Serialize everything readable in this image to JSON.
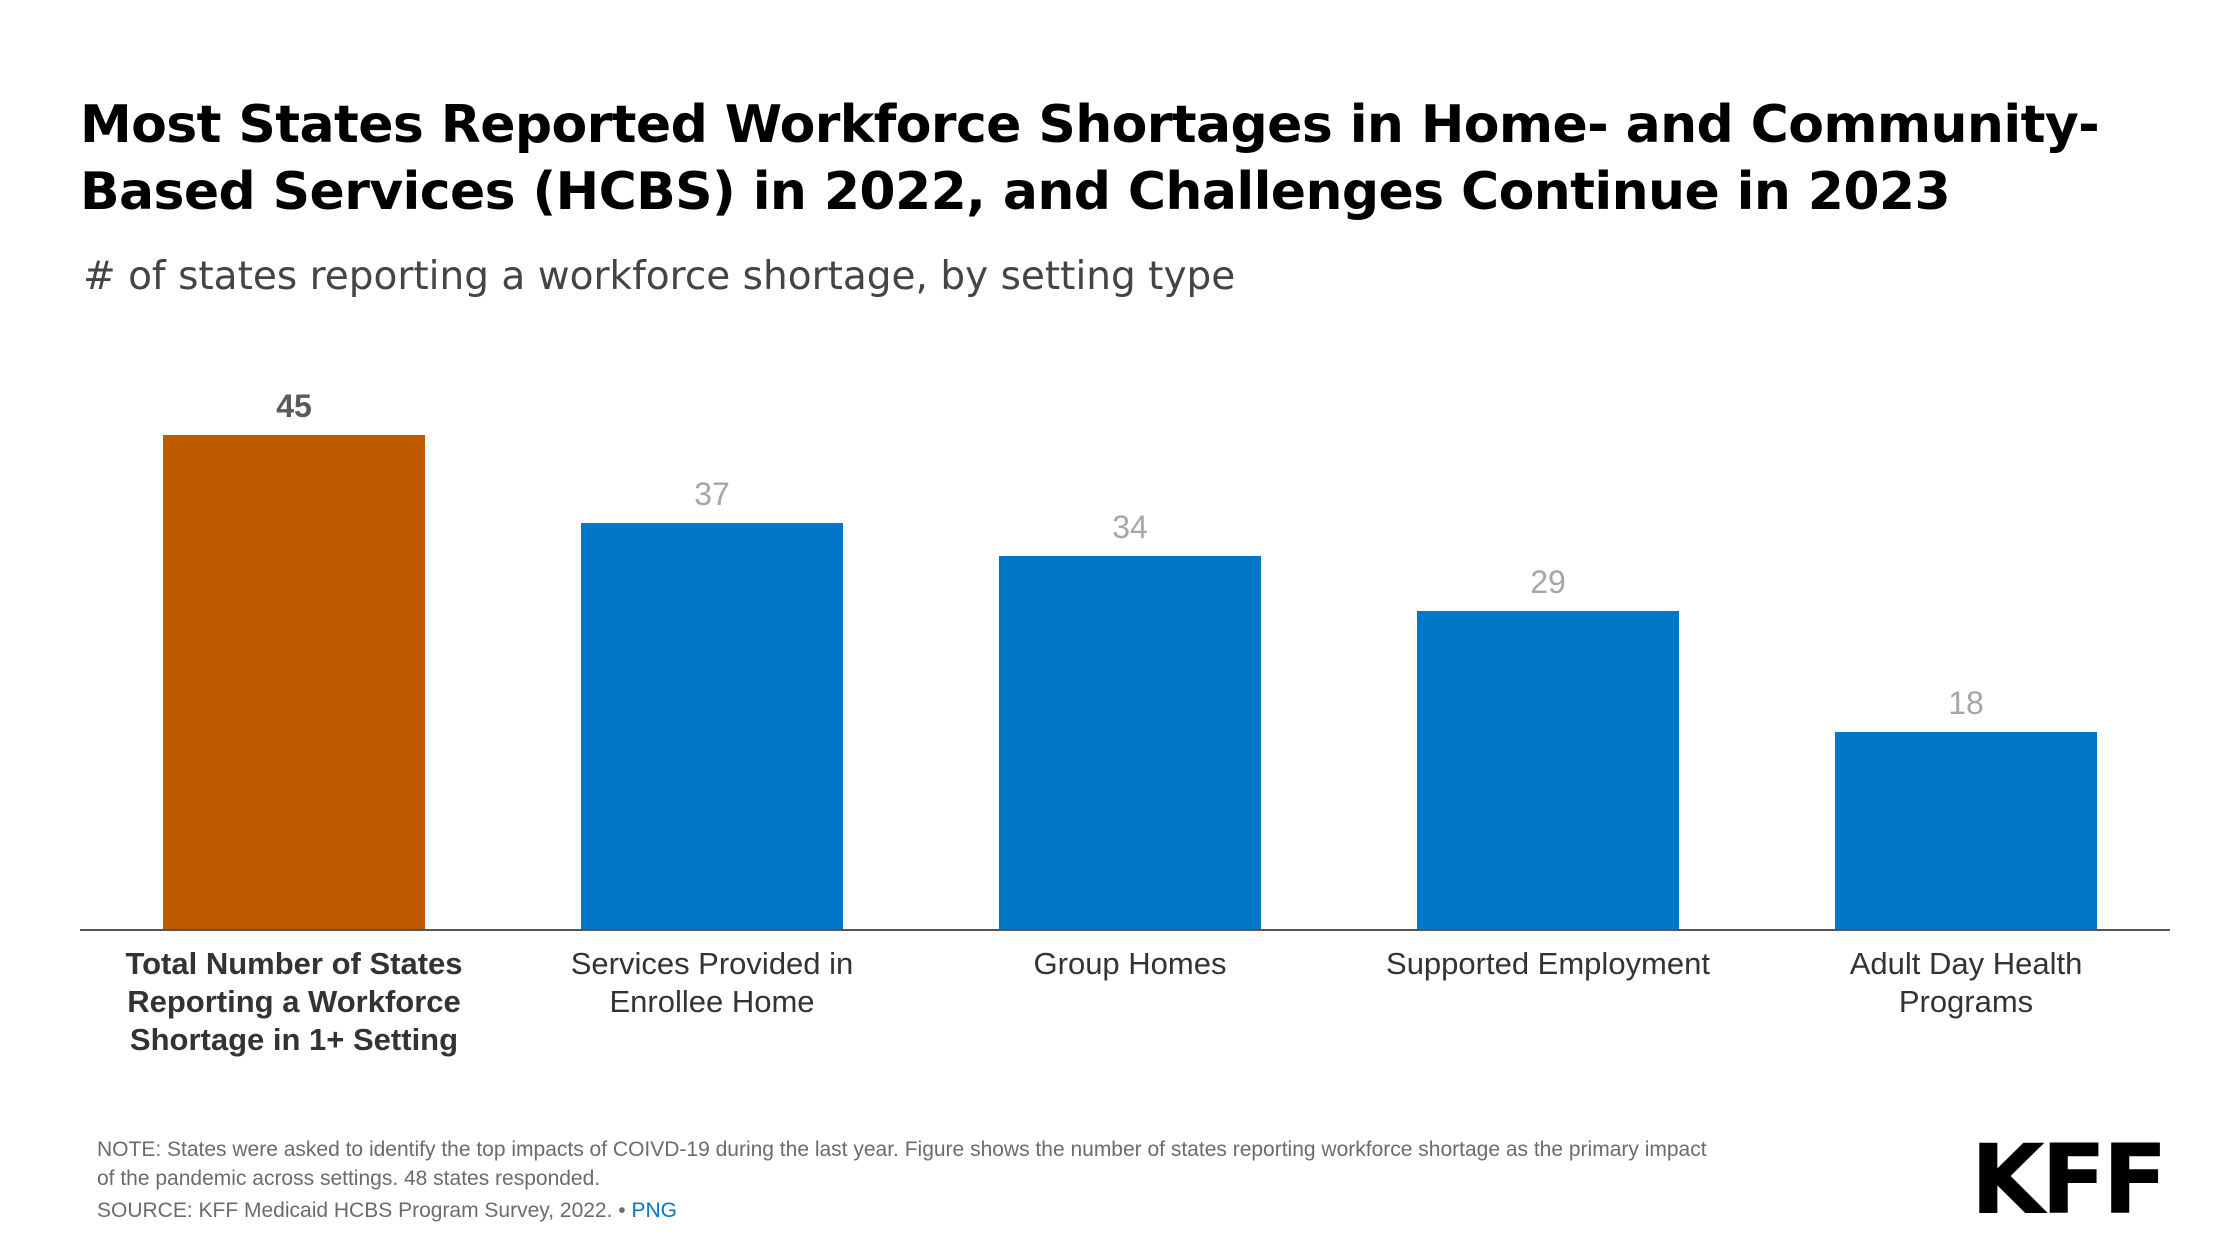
{
  "header": {
    "title": "Most States Reported Workforce Shortages in Home- and Community-Based Services (HCBS) in 2022, and Challenges Continue in 2023",
    "subtitle": "# of states reporting a workforce shortage, by setting type"
  },
  "chart_data": {
    "type": "bar",
    "title": "Most States Reported Workforce Shortages in Home- and Community-Based Services (HCBS) in 2022, and Challenges Continue in 2023",
    "subtitle": "# of states reporting a workforce shortage, by setting type",
    "categories": [
      "Total Number of States Reporting a Workforce Shortage in 1+ Setting",
      "Services Provided in Enrollee Home",
      "Group Homes",
      "Supported Employment",
      "Adult Day Health Programs"
    ],
    "category_lines": [
      [
        "Total Number of States",
        "Reporting a Workforce",
        "Shortage in 1+ Setting"
      ],
      [
        "Services Provided in",
        "Enrollee Home"
      ],
      [
        "Group Homes"
      ],
      [
        "Supported Employment"
      ],
      [
        "Adult Day Health",
        "Programs"
      ]
    ],
    "values": [
      45,
      37,
      34,
      29,
      18
    ],
    "highlight_index": 0,
    "colors": {
      "highlight": "#c05a00",
      "bar": "#0077c8",
      "highlight_label": "#5a5a5a",
      "value_label": "#a6a6a6",
      "axis": "#555555",
      "category_text": "#333333"
    },
    "ylim": [
      0,
      45
    ],
    "xlabel": "",
    "ylabel": "",
    "grid": false,
    "legend": "none",
    "data_labels": true
  },
  "footer": {
    "note": "NOTE: States were asked to identify the top impacts of COIVD-19 during the last year. Figure shows the number of states reporting workforce shortage as the primary impact of the pandemic across settings. 48 states responded.",
    "source": "SOURCE: KFF Medicaid HCBS Program Survey, 2022. • ",
    "png_link": "PNG",
    "logo": "KFF"
  }
}
